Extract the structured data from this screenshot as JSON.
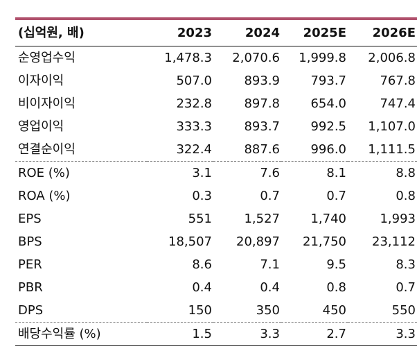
{
  "table": {
    "header": [
      "(십억원, 배)",
      "2023",
      "2024",
      "2025E",
      "2026E"
    ],
    "rows": [
      [
        "순영업수익",
        "1,478.3",
        "2,070.6",
        "1,999.8",
        "2,006.8"
      ],
      [
        "이자이익",
        "507.0",
        "893.9",
        "793.7",
        "767.8"
      ],
      [
        "비이자이익",
        "232.8",
        "897.8",
        "654.0",
        "747.4"
      ],
      [
        "영업이익",
        "333.3",
        "893.7",
        "992.5",
        "1,107.0"
      ],
      [
        "연결순이익",
        "322.4",
        "887.6",
        "996.0",
        "1,111.5"
      ],
      [
        "ROE (%)",
        "3.1",
        "7.6",
        "8.1",
        "8.8"
      ],
      [
        "ROA (%)",
        "0.3",
        "0.7",
        "0.7",
        "0.8"
      ],
      [
        "EPS",
        "551",
        "1,527",
        "1,740",
        "1,993"
      ],
      [
        "BPS",
        "18,507",
        "20,897",
        "21,750",
        "23,112"
      ],
      [
        "PER",
        "8.6",
        "7.1",
        "9.5",
        "8.3"
      ],
      [
        "PBR",
        "0.4",
        "0.4",
        "0.8",
        "0.7"
      ],
      [
        "DPS",
        "150",
        "350",
        "450",
        "550"
      ],
      [
        "배당수익률 (%)",
        "1.5",
        "3.3",
        "2.7",
        "3.3"
      ]
    ]
  },
  "colors": {
    "accent_bar": "#b0506c"
  }
}
